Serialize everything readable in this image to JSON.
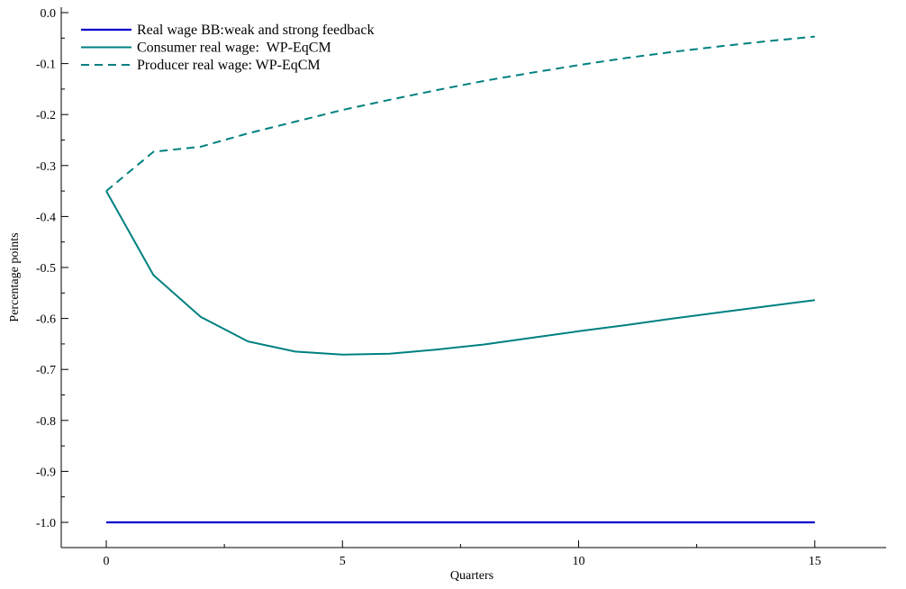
{
  "chart_data": {
    "type": "line",
    "title": "",
    "xlabel": "Quarters",
    "ylabel": "Percentage points",
    "xlim": [
      -1,
      17
    ],
    "ylim": [
      -1.05,
      0.0
    ],
    "xticks": [
      0,
      5,
      10,
      15
    ],
    "xtick_labels": [
      "0",
      "5",
      "10",
      "15"
    ],
    "yticks": [
      0.0,
      -0.1,
      -0.2,
      -0.3,
      -0.4,
      -0.5,
      -0.6,
      -0.7,
      -0.8,
      -0.9,
      -1.0
    ],
    "ytick_labels": [
      "0.0",
      "-0.1",
      "-0.2",
      "-0.3",
      "-0.4",
      "-0.5",
      "-0.6",
      "-0.7",
      "-0.8",
      "-0.9",
      "-1.0"
    ],
    "grid": false,
    "legend_position": "top-left",
    "x": [
      0,
      1,
      2,
      3,
      4,
      5,
      6,
      7,
      8,
      9,
      10,
      11,
      12,
      13,
      14,
      15
    ],
    "series": [
      {
        "name": "Real wage BB:weak and strong feedback",
        "color": "#0000cc",
        "style": "solid",
        "values": [
          -1.0,
          -1.0,
          -1.0,
          -1.0,
          -1.0,
          -1.0,
          -1.0,
          -1.0,
          -1.0,
          -1.0,
          -1.0,
          -1.0,
          -1.0,
          -1.0,
          -1.0,
          -1.0
        ]
      },
      {
        "name": "Consumer real wage:  WP-EqCM",
        "color": "#008080",
        "style": "solid",
        "values": [
          -0.35,
          -0.515,
          -0.597,
          -0.645,
          -0.665,
          -0.671,
          -0.669,
          -0.661,
          -0.651,
          -0.638,
          -0.625,
          -0.613,
          -0.6,
          -0.588,
          -0.576,
          -0.564
        ]
      },
      {
        "name": "Producer real wage: WP-EqCM",
        "color": "#008080",
        "style": "dashed",
        "values": [
          -0.35,
          -0.273,
          -0.263,
          -0.237,
          -0.214,
          -0.191,
          -0.171,
          -0.152,
          -0.134,
          -0.118,
          -0.103,
          -0.089,
          -0.077,
          -0.066,
          -0.056,
          -0.047
        ]
      }
    ]
  }
}
